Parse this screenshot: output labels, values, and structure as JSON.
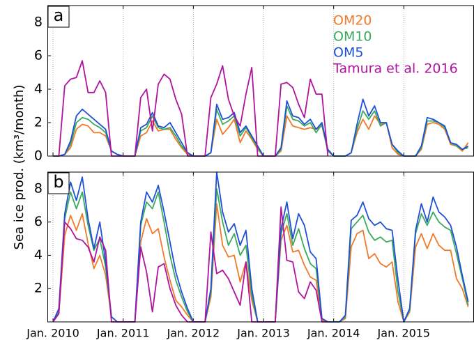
{
  "chart_data": [
    {
      "type": "line",
      "label": "a",
      "ylabel": "Sea ice prod. (km³/month)",
      "legend": "upper right",
      "xlim": [
        2009.92,
        2016.0
      ],
      "ylim": [
        0,
        9
      ],
      "yticks": [
        0,
        2,
        4,
        6,
        8
      ],
      "x": [
        2010,
        2010.083,
        2010.167,
        2010.25,
        2010.333,
        2010.417,
        2010.5,
        2010.583,
        2010.667,
        2010.75,
        2010.833,
        2010.917,
        2011,
        2011.083,
        2011.167,
        2011.25,
        2011.333,
        2011.417,
        2011.5,
        2011.583,
        2011.667,
        2011.75,
        2011.833,
        2011.917,
        2012,
        2012.083,
        2012.167,
        2012.25,
        2012.333,
        2012.417,
        2012.5,
        2012.583,
        2012.667,
        2012.75,
        2012.833,
        2012.917,
        2013,
        2013.083,
        2013.167,
        2013.25,
        2013.333,
        2013.417,
        2013.5,
        2013.583,
        2013.667,
        2013.75,
        2013.833,
        2013.917,
        2014,
        2014.083,
        2014.167,
        2014.25,
        2014.333,
        2014.417,
        2014.5,
        2014.583,
        2014.667,
        2014.75,
        2014.833,
        2014.917,
        2015,
        2015.083,
        2015.167,
        2015.25,
        2015.333,
        2015.417,
        2015.5,
        2015.583,
        2015.667,
        2015.75,
        2015.833,
        2015.917
      ],
      "series": [
        {
          "name": "OM20",
          "color": "#f07a2a",
          "values": [
            0,
            0,
            0.1,
            0.5,
            1.6,
            1.9,
            1.8,
            1.4,
            1.4,
            1.2,
            0.3,
            0.1,
            0,
            0,
            0,
            1.2,
            1.4,
            2.1,
            1.5,
            1.6,
            1.6,
            1.0,
            0.5,
            0.1,
            0,
            0,
            0,
            0.2,
            2.2,
            1.3,
            1.7,
            2.2,
            0.8,
            1.5,
            1.0,
            0.4,
            0,
            0,
            0,
            0.3,
            2.4,
            1.8,
            1.7,
            1.6,
            1.7,
            1.6,
            1.8,
            0.3,
            0,
            0,
            0,
            0.2,
            1.4,
            2.2,
            1.6,
            2.4,
            1.9,
            2.0,
            0.5,
            0.1,
            0,
            0,
            0,
            0.4,
            1.9,
            2.0,
            1.9,
            1.6,
            0.7,
            0.6,
            0.3,
            0.8
          ]
        },
        {
          "name": "OM10",
          "color": "#3aaa5c",
          "values": [
            0,
            0,
            0.1,
            0.7,
            2.0,
            2.3,
            2.2,
            1.9,
            1.7,
            1.4,
            0.3,
            0.1,
            0,
            0,
            0,
            1.5,
            1.7,
            2.4,
            1.7,
            1.6,
            1.7,
            1.2,
            0.6,
            0.2,
            0,
            0,
            0,
            0.2,
            2.8,
            1.9,
            2.1,
            2.4,
            1.2,
            1.7,
            1.1,
            0.5,
            0,
            0,
            0,
            0.4,
            3.0,
            2.2,
            2.1,
            1.8,
            2.0,
            1.4,
            1.9,
            0.3,
            0,
            0,
            0,
            0.2,
            1.6,
            2.7,
            2.2,
            2.7,
            1.8,
            2.0,
            0.7,
            0.2,
            0,
            0,
            0,
            0.5,
            2.1,
            2.1,
            2.0,
            1.7,
            0.8,
            0.6,
            0.4,
            0.5
          ]
        },
        {
          "name": "OM5",
          "color": "#1f4fd6",
          "values": [
            0,
            0,
            0.1,
            0.9,
            2.4,
            2.8,
            2.5,
            2.2,
            1.9,
            1.6,
            0.3,
            0.1,
            0,
            0,
            0,
            1.7,
            1.9,
            2.6,
            1.8,
            1.7,
            2.0,
            1.4,
            0.8,
            0.2,
            0,
            0,
            0,
            0.2,
            3.1,
            2.2,
            2.3,
            2.6,
            1.4,
            1.8,
            1.2,
            0.6,
            0,
            0,
            0,
            0.5,
            3.3,
            2.4,
            2.3,
            1.9,
            2.2,
            1.6,
            2.0,
            0.4,
            0,
            0,
            0,
            0.2,
            1.9,
            3.4,
            2.4,
            3.0,
            2.0,
            2.0,
            0.7,
            0.3,
            0,
            0,
            0,
            0.6,
            2.3,
            2.2,
            2.0,
            1.8,
            0.8,
            0.7,
            0.4,
            0.6
          ]
        },
        {
          "name": "Tamura et al. 2016",
          "color": "#b0139e",
          "values": [
            0,
            0,
            4.2,
            4.6,
            4.7,
            5.7,
            3.8,
            3.8,
            4.5,
            3.8,
            0,
            0,
            0,
            0,
            0,
            3.5,
            4.0,
            1.5,
            4.3,
            4.9,
            4.6,
            3.4,
            2.5,
            0,
            0,
            0,
            0,
            3.5,
            4.3,
            5.4,
            3.4,
            2.4,
            1.8,
            3.7,
            5.3,
            0,
            0,
            0,
            0,
            4.3,
            4.4,
            4.1,
            3.1,
            2.3,
            4.6,
            3.7,
            3.7,
            0,
            null,
            null,
            null,
            null,
            null,
            null,
            null,
            null,
            null,
            null,
            null,
            null,
            null,
            null,
            null,
            null,
            null,
            null,
            null,
            null,
            null,
            null,
            null,
            null
          ]
        }
      ]
    },
    {
      "type": "line",
      "label": "b",
      "xlim": [
        2009.92,
        2016.0
      ],
      "ylim": [
        0,
        9
      ],
      "yticks": [
        2,
        4,
        6,
        8
      ],
      "xticks": [
        {
          "value": 2010,
          "label": "Jan. 2010"
        },
        {
          "value": 2011,
          "label": "Jan. 2011"
        },
        {
          "value": 2012,
          "label": "Jan. 2012"
        },
        {
          "value": 2013,
          "label": "Jan. 2013"
        },
        {
          "value": 2014,
          "label": "Jan. 2014"
        },
        {
          "value": 2015,
          "label": "Jan. 2015"
        }
      ],
      "x": [
        2010,
        2010.083,
        2010.167,
        2010.25,
        2010.333,
        2010.417,
        2010.5,
        2010.583,
        2010.667,
        2010.75,
        2010.833,
        2010.917,
        2011,
        2011.083,
        2011.167,
        2011.25,
        2011.333,
        2011.417,
        2011.5,
        2011.583,
        2011.667,
        2011.75,
        2011.833,
        2011.917,
        2012,
        2012.083,
        2012.167,
        2012.25,
        2012.333,
        2012.417,
        2012.5,
        2012.583,
        2012.667,
        2012.75,
        2012.833,
        2012.917,
        2013,
        2013.083,
        2013.167,
        2013.25,
        2013.333,
        2013.417,
        2013.5,
        2013.583,
        2013.667,
        2013.75,
        2013.833,
        2013.917,
        2014,
        2014.083,
        2014.167,
        2014.25,
        2014.333,
        2014.417,
        2014.5,
        2014.583,
        2014.667,
        2014.75,
        2014.833,
        2014.917,
        2015,
        2015.083,
        2015.167,
        2015.25,
        2015.333,
        2015.417,
        2015.5,
        2015.583,
        2015.667,
        2015.75,
        2015.833,
        2015.917
      ],
      "series": [
        {
          "color": "#f07a2a",
          "values": [
            0,
            0.5,
            5.2,
            6.4,
            5.5,
            6.5,
            4.7,
            3.2,
            4.0,
            2.8,
            0.3,
            0,
            0,
            0,
            0,
            4.8,
            6.2,
            5.3,
            5.6,
            3.9,
            2.5,
            1.3,
            0.9,
            0.4,
            0,
            0,
            0,
            1.5,
            7.1,
            4.6,
            3.9,
            4.0,
            2.4,
            3.6,
            1.3,
            0,
            0,
            0,
            0,
            4.9,
            5.8,
            4.2,
            4.3,
            3.4,
            2.7,
            2.5,
            0.1,
            0,
            0,
            0,
            0.2,
            4.5,
            5.3,
            5.5,
            3.8,
            4.1,
            3.5,
            3.3,
            3.6,
            1.2,
            0,
            0.6,
            4.5,
            5.3,
            4.4,
            5.3,
            4.6,
            4.3,
            4.3,
            2.6,
            2.0,
            0.9
          ]
        },
        {
          "color": "#3aaa5c",
          "values": [
            0,
            0.6,
            6.2,
            7.8,
            6.8,
            7.8,
            5.8,
            4.3,
            5.0,
            3.3,
            0.3,
            0,
            0,
            0,
            0,
            5.8,
            7.2,
            6.8,
            7.8,
            6.0,
            4.0,
            2.5,
            1.5,
            0.6,
            0,
            0,
            0,
            1.8,
            8.0,
            6.0,
            4.6,
            5.3,
            4.0,
            4.6,
            1.6,
            0,
            0,
            0,
            0,
            5.3,
            6.5,
            4.6,
            5.6,
            4.4,
            3.5,
            3.2,
            0.2,
            0,
            0,
            0,
            0.3,
            5.6,
            6.0,
            6.4,
            5.4,
            4.9,
            5.1,
            4.8,
            4.9,
            1.8,
            0,
            0.7,
            5.3,
            6.5,
            5.8,
            6.6,
            6.0,
            5.7,
            5.5,
            4.1,
            2.6,
            1.0
          ]
        },
        {
          "color": "#1f4fd6",
          "values": [
            0,
            0.8,
            6.5,
            8.4,
            7.3,
            8.7,
            6.2,
            4.4,
            6.0,
            3.6,
            0.3,
            0,
            0,
            0,
            0,
            6.0,
            7.8,
            7.2,
            8.2,
            6.6,
            4.8,
            3.0,
            1.8,
            0.8,
            0,
            0,
            0,
            2.0,
            9.0,
            6.6,
            5.4,
            5.9,
            4.6,
            5.5,
            2.0,
            0,
            0,
            0,
            0,
            5.6,
            7.2,
            5.0,
            6.5,
            5.8,
            4.2,
            3.8,
            0.2,
            0,
            0,
            0,
            0.4,
            6.1,
            6.4,
            7.2,
            6.2,
            5.8,
            6.0,
            5.6,
            5.5,
            2.5,
            0,
            0.8,
            5.5,
            7.1,
            6.0,
            7.5,
            6.6,
            6.3,
            5.8,
            4.5,
            2.8,
            1.2
          ]
        },
        {
          "color": "#b0139e",
          "values": [
            0,
            0.5,
            6.0,
            5.6,
            5.0,
            4.9,
            4.5,
            3.6,
            5.1,
            4.3,
            0,
            0,
            0,
            0,
            0,
            4.5,
            3.0,
            0.6,
            3.3,
            3.5,
            2.0,
            1.0,
            0.4,
            0,
            0,
            0,
            0,
            5.4,
            2.9,
            3.1,
            2.6,
            1.8,
            1.0,
            3.6,
            0,
            0,
            0,
            0,
            0,
            6.9,
            3.7,
            3.6,
            1.8,
            1.4,
            2.4,
            1.9,
            0,
            0,
            null,
            null,
            null,
            null,
            null,
            null,
            null,
            null,
            null,
            null,
            null,
            null,
            null,
            null,
            null,
            null,
            null,
            null,
            null,
            null,
            null,
            null,
            null,
            null
          ]
        }
      ]
    }
  ]
}
